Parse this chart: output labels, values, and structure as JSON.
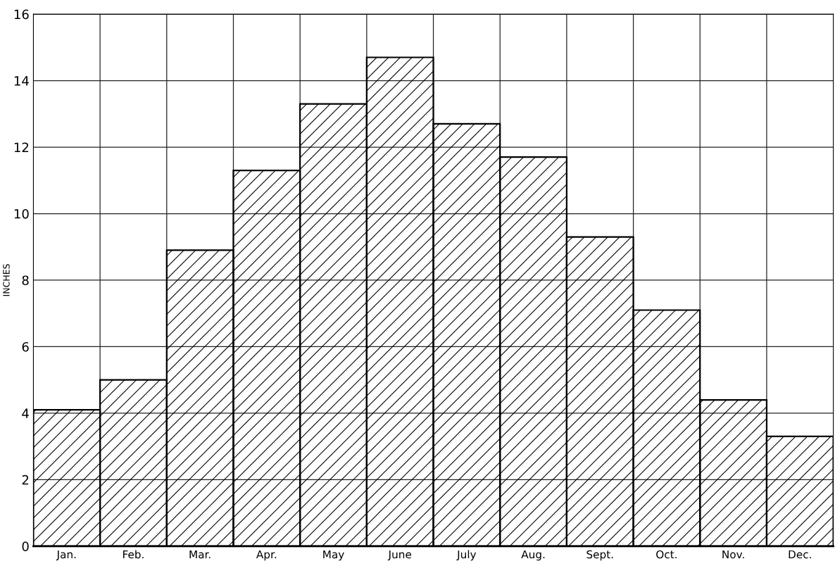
{
  "chart_data": {
    "type": "bar",
    "ylabel": "INCHES",
    "categories": [
      "Jan.",
      "Feb.",
      "Mar.",
      "Apr.",
      "May",
      "June",
      "July",
      "Aug.",
      "Sept.",
      "Oct.",
      "Nov.",
      "Dec."
    ],
    "values": [
      4.1,
      5.0,
      8.9,
      11.3,
      13.3,
      14.7,
      12.7,
      11.7,
      9.3,
      7.1,
      4.4,
      3.3
    ],
    "color": "#000000",
    "ylim": [
      0,
      16
    ],
    "yticks": [
      0,
      2,
      4,
      6,
      8,
      10,
      12,
      14,
      16
    ],
    "grid": true
  }
}
